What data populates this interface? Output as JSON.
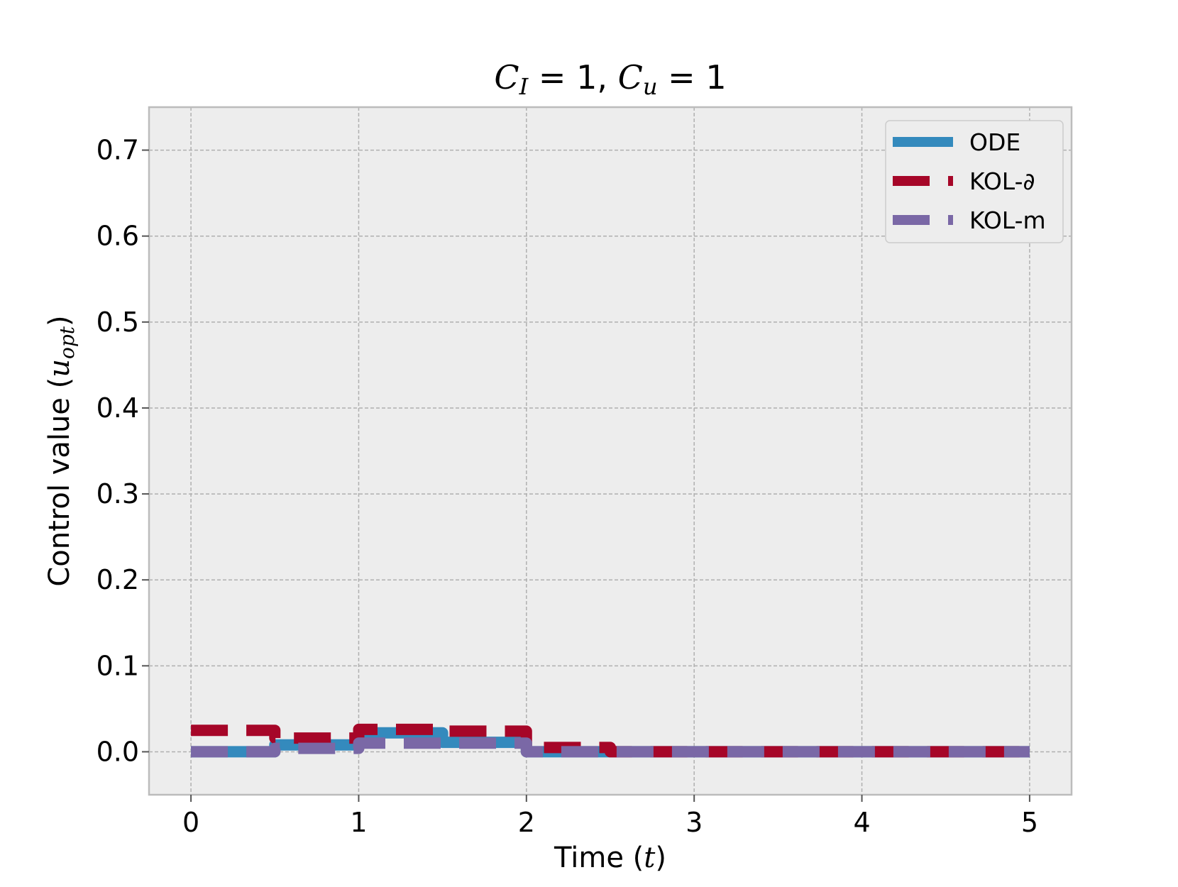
{
  "chart_data": {
    "type": "line",
    "title_parts": [
      {
        "text": "C",
        "math": true
      },
      {
        "text": "I",
        "math": true,
        "sub": true
      },
      {
        "text": " = 1, ",
        "math": false
      },
      {
        "text": "C",
        "math": true
      },
      {
        "text": "u",
        "math": true,
        "sub": true
      },
      {
        "text": " = 1",
        "math": false
      }
    ],
    "xlabel_parts": [
      {
        "text": "Time (",
        "math": false
      },
      {
        "text": "t",
        "math": true
      },
      {
        "text": ")",
        "math": false
      }
    ],
    "ylabel_parts": [
      {
        "text": "Control value (",
        "math": false
      },
      {
        "text": "u",
        "math": true
      },
      {
        "text": "opt",
        "math": true,
        "sub": true
      },
      {
        "text": ")",
        "math": false
      }
    ],
    "xlim": [
      -0.25,
      5.25
    ],
    "ylim": [
      -0.05,
      0.75
    ],
    "xticks": [
      0,
      1,
      2,
      3,
      4,
      5
    ],
    "xtick_labels": [
      "0",
      "1",
      "2",
      "3",
      "4",
      "5"
    ],
    "yticks": [
      0.0,
      0.1,
      0.2,
      0.3,
      0.4,
      0.5,
      0.6,
      0.7
    ],
    "ytick_labels": [
      "0.0",
      "0.1",
      "0.2",
      "0.3",
      "0.4",
      "0.5",
      "0.6",
      "0.7"
    ],
    "grid": true,
    "legend_position": "top-right",
    "series": [
      {
        "name": "ODE",
        "style": "solid",
        "color": "#348ABD",
        "x": [
          0,
          0.5,
          0.5,
          1.0,
          1.0,
          1.5,
          1.5,
          2.0,
          2.0,
          2.5,
          2.5,
          5.0
        ],
        "y": [
          0.0,
          0.0,
          0.008,
          0.008,
          0.022,
          0.022,
          0.011,
          0.011,
          0.0,
          0.0,
          0.0,
          0.0
        ]
      },
      {
        "name": "KOL-∂",
        "style": "dashed",
        "color": "#A60628",
        "x": [
          0,
          0.5,
          0.5,
          1.0,
          1.0,
          1.5,
          1.5,
          2.0,
          2.0,
          2.5,
          2.5,
          5.0
        ],
        "y": [
          0.025,
          0.025,
          0.016,
          0.016,
          0.026,
          0.026,
          0.024,
          0.024,
          0.005,
          0.005,
          0.0,
          0.0
        ]
      },
      {
        "name": "KOL-m",
        "style": "dashed",
        "color": "#7A68A6",
        "x": [
          0,
          0.5,
          0.5,
          1.0,
          1.0,
          1.5,
          1.5,
          2.0,
          2.0,
          2.5,
          2.5,
          5.0
        ],
        "y": [
          0.0,
          0.0,
          0.004,
          0.004,
          0.01,
          0.01,
          0.01,
          0.01,
          0.0,
          0.0,
          0.0,
          0.0
        ]
      }
    ],
    "colors": {
      "plot_background": "#EDEDED",
      "grid": "#B0B0B0",
      "frame": "#BCBCBC"
    }
  }
}
